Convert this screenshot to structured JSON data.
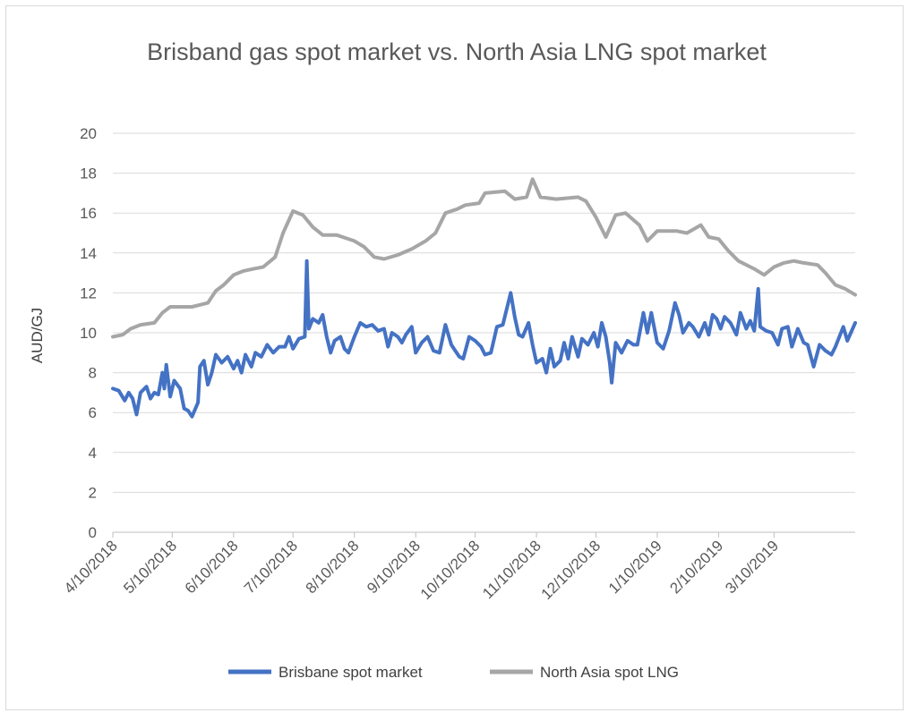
{
  "chart_data": {
    "type": "line",
    "title": "Brisband gas spot market vs. North Asia LNG spot market",
    "ylabel": "AUD/GJ",
    "xlabel": "",
    "ylim": [
      0,
      20
    ],
    "yticks": [
      "0",
      "2",
      "4",
      "6",
      "8",
      "10",
      "12",
      "14",
      "16",
      "18",
      "20"
    ],
    "xticks": [
      "4/10/2018",
      "5/10/2018",
      "6/10/2018",
      "7/10/2018",
      "8/10/2018",
      "9/10/2018",
      "10/10/2018",
      "11/10/2018",
      "12/10/2018",
      "1/10/2019",
      "2/10/2019",
      "3/10/2019"
    ],
    "xrange": [
      "4/10/2018",
      "4/20/2019"
    ],
    "grid": "horizontal",
    "legend_position": "bottom",
    "series": [
      {
        "name": "Brisbane spot market",
        "color": "#4472c4",
        "points": [
          [
            "4/10/2018",
            7.2
          ],
          [
            "4/13/2018",
            7.1
          ],
          [
            "4/16/2018",
            6.6
          ],
          [
            "4/18/2018",
            7.0
          ],
          [
            "4/20/2018",
            6.7
          ],
          [
            "4/22/2018",
            5.9
          ],
          [
            "4/24/2018",
            7.0
          ],
          [
            "4/27/2018",
            7.3
          ],
          [
            "4/29/2018",
            6.7
          ],
          [
            "5/1/2018",
            7.0
          ],
          [
            "5/3/2018",
            6.9
          ],
          [
            "5/5/2018",
            8.0
          ],
          [
            "5/6/2018",
            7.2
          ],
          [
            "5/7/2018",
            8.4
          ],
          [
            "5/9/2018",
            6.8
          ],
          [
            "5/11/2018",
            7.6
          ],
          [
            "5/14/2018",
            7.2
          ],
          [
            "5/16/2018",
            6.2
          ],
          [
            "5/18/2018",
            6.1
          ],
          [
            "5/20/2018",
            5.8
          ],
          [
            "5/23/2018",
            6.5
          ],
          [
            "5/24/2018",
            8.3
          ],
          [
            "5/26/2018",
            8.6
          ],
          [
            "5/28/2018",
            7.4
          ],
          [
            "5/30/2018",
            8.0
          ],
          [
            "6/1/2018",
            8.9
          ],
          [
            "6/4/2018",
            8.5
          ],
          [
            "6/7/2018",
            8.8
          ],
          [
            "6/10/2018",
            8.2
          ],
          [
            "6/12/2018",
            8.6
          ],
          [
            "6/14/2018",
            8.0
          ],
          [
            "6/16/2018",
            8.9
          ],
          [
            "6/19/2018",
            8.3
          ],
          [
            "6/21/2018",
            9.0
          ],
          [
            "6/24/2018",
            8.8
          ],
          [
            "6/27/2018",
            9.4
          ],
          [
            "6/30/2018",
            9.0
          ],
          [
            "7/3/2018",
            9.3
          ],
          [
            "7/6/2018",
            9.3
          ],
          [
            "7/8/2018",
            9.8
          ],
          [
            "7/10/2018",
            9.2
          ],
          [
            "7/13/2018",
            9.7
          ],
          [
            "7/16/2018",
            9.8
          ],
          [
            "7/17/2018",
            13.6
          ],
          [
            "7/18/2018",
            10.2
          ],
          [
            "7/20/2018",
            10.7
          ],
          [
            "7/23/2018",
            10.5
          ],
          [
            "7/25/2018",
            10.9
          ],
          [
            "7/27/2018",
            9.8
          ],
          [
            "7/29/2018",
            9.0
          ],
          [
            "7/31/2018",
            9.6
          ],
          [
            "8/3/2018",
            9.8
          ],
          [
            "8/5/2018",
            9.2
          ],
          [
            "8/7/2018",
            9.0
          ],
          [
            "8/10/2018",
            9.8
          ],
          [
            "8/13/2018",
            10.5
          ],
          [
            "8/16/2018",
            10.3
          ],
          [
            "8/19/2018",
            10.4
          ],
          [
            "8/22/2018",
            10.1
          ],
          [
            "8/25/2018",
            10.2
          ],
          [
            "8/27/2018",
            9.3
          ],
          [
            "8/29/2018",
            10.0
          ],
          [
            "9/1/2018",
            9.8
          ],
          [
            "9/3/2018",
            9.5
          ],
          [
            "9/5/2018",
            9.9
          ],
          [
            "9/8/2018",
            10.3
          ],
          [
            "9/10/2018",
            9.0
          ],
          [
            "9/13/2018",
            9.5
          ],
          [
            "9/16/2018",
            9.8
          ],
          [
            "9/19/2018",
            9.1
          ],
          [
            "9/22/2018",
            9.0
          ],
          [
            "9/25/2018",
            10.4
          ],
          [
            "9/28/2018",
            9.4
          ],
          [
            "9/30/2018",
            9.1
          ],
          [
            "10/2/2018",
            8.8
          ],
          [
            "10/4/2018",
            8.7
          ],
          [
            "10/7/2018",
            9.8
          ],
          [
            "10/10/2018",
            9.6
          ],
          [
            "10/13/2018",
            9.3
          ],
          [
            "10/15/2018",
            8.9
          ],
          [
            "10/18/2018",
            9.0
          ],
          [
            "10/21/2018",
            10.3
          ],
          [
            "10/24/2018",
            10.4
          ],
          [
            "10/26/2018",
            11.2
          ],
          [
            "10/28/2018",
            12.0
          ],
          [
            "10/30/2018",
            10.8
          ],
          [
            "11/1/2018",
            9.9
          ],
          [
            "11/3/2018",
            9.8
          ],
          [
            "11/6/2018",
            10.5
          ],
          [
            "11/8/2018",
            9.4
          ],
          [
            "11/10/2018",
            8.5
          ],
          [
            "11/13/2018",
            8.7
          ],
          [
            "11/15/2018",
            8.0
          ],
          [
            "11/17/2018",
            9.2
          ],
          [
            "11/19/2018",
            8.3
          ],
          [
            "11/22/2018",
            8.6
          ],
          [
            "11/24/2018",
            9.5
          ],
          [
            "11/26/2018",
            8.7
          ],
          [
            "11/28/2018",
            9.8
          ],
          [
            "12/1/2018",
            8.8
          ],
          [
            "12/3/2018",
            9.7
          ],
          [
            "12/6/2018",
            9.4
          ],
          [
            "12/9/2018",
            10.0
          ],
          [
            "12/11/2018",
            9.3
          ],
          [
            "12/13/2018",
            10.5
          ],
          [
            "12/15/2018",
            9.8
          ],
          [
            "12/17/2018",
            8.5
          ],
          [
            "12/18/2018",
            7.5
          ],
          [
            "12/20/2018",
            9.5
          ],
          [
            "12/23/2018",
            9.0
          ],
          [
            "12/26/2018",
            9.6
          ],
          [
            "12/29/2018",
            9.4
          ],
          [
            "12/31/2018",
            9.4
          ],
          [
            "1/3/2019",
            11.0
          ],
          [
            "1/5/2019",
            10.0
          ],
          [
            "1/7/2019",
            11.0
          ],
          [
            "1/10/2019",
            9.5
          ],
          [
            "1/13/2019",
            9.2
          ],
          [
            "1/16/2019",
            10.1
          ],
          [
            "1/19/2019",
            11.5
          ],
          [
            "1/21/2019",
            10.9
          ],
          [
            "1/23/2019",
            10.0
          ],
          [
            "1/26/2019",
            10.5
          ],
          [
            "1/28/2019",
            10.3
          ],
          [
            "1/31/2019",
            9.8
          ],
          [
            "2/3/2019",
            10.5
          ],
          [
            "2/5/2019",
            9.9
          ],
          [
            "2/7/2019",
            10.9
          ],
          [
            "2/9/2019",
            10.7
          ],
          [
            "2/11/2019",
            10.2
          ],
          [
            "2/13/2019",
            10.8
          ],
          [
            "2/16/2019",
            10.5
          ],
          [
            "2/19/2019",
            9.9
          ],
          [
            "2/21/2019",
            11.0
          ],
          [
            "2/24/2019",
            10.2
          ],
          [
            "2/26/2019",
            10.6
          ],
          [
            "2/28/2019",
            10.1
          ],
          [
            "3/2/2019",
            12.2
          ],
          [
            "3/3/2019",
            10.3
          ],
          [
            "3/6/2019",
            10.1
          ],
          [
            "3/9/2019",
            10.0
          ],
          [
            "3/12/2019",
            9.4
          ],
          [
            "3/14/2019",
            10.2
          ],
          [
            "3/17/2019",
            10.3
          ],
          [
            "3/19/2019",
            9.3
          ],
          [
            "3/22/2019",
            10.2
          ],
          [
            "3/25/2019",
            9.5
          ],
          [
            "3/27/2019",
            9.4
          ],
          [
            "3/30/2019",
            8.3
          ],
          [
            "4/2/2019",
            9.4
          ],
          [
            "4/5/2019",
            9.1
          ],
          [
            "4/8/2019",
            8.9
          ],
          [
            "4/10/2019",
            9.3
          ],
          [
            "4/12/2019",
            9.8
          ],
          [
            "4/14/2019",
            10.3
          ],
          [
            "4/16/2019",
            9.6
          ],
          [
            "4/20/2019",
            10.5
          ]
        ]
      },
      {
        "name": "North Asia spot LNG",
        "color": "#a6a6a6",
        "points": [
          [
            "4/10/2018",
            9.8
          ],
          [
            "4/15/2018",
            9.9
          ],
          [
            "4/19/2018",
            10.2
          ],
          [
            "4/24/2018",
            10.4
          ],
          [
            "5/1/2018",
            10.5
          ],
          [
            "5/5/2018",
            11.0
          ],
          [
            "5/9/2018",
            11.3
          ],
          [
            "5/15/2018",
            11.3
          ],
          [
            "5/20/2018",
            11.3
          ],
          [
            "5/24/2018",
            11.4
          ],
          [
            "5/28/2018",
            11.5
          ],
          [
            "6/1/2018",
            12.1
          ],
          [
            "6/5/2018",
            12.4
          ],
          [
            "6/10/2018",
            12.9
          ],
          [
            "6/15/2018",
            13.1
          ],
          [
            "6/20/2018",
            13.2
          ],
          [
            "6/25/2018",
            13.3
          ],
          [
            "7/1/2018",
            13.8
          ],
          [
            "7/5/2018",
            15.0
          ],
          [
            "7/10/2018",
            16.1
          ],
          [
            "7/15/2018",
            15.9
          ],
          [
            "7/20/2018",
            15.3
          ],
          [
            "7/25/2018",
            14.9
          ],
          [
            "8/1/2018",
            14.9
          ],
          [
            "8/10/2018",
            14.6
          ],
          [
            "8/15/2018",
            14.3
          ],
          [
            "8/20/2018",
            13.8
          ],
          [
            "8/25/2018",
            13.7
          ],
          [
            "9/1/2018",
            13.9
          ],
          [
            "9/8/2018",
            14.2
          ],
          [
            "9/15/2018",
            14.6
          ],
          [
            "9/20/2018",
            15.0
          ],
          [
            "9/25/2018",
            16.0
          ],
          [
            "10/1/2018",
            16.2
          ],
          [
            "10/5/2018",
            16.4
          ],
          [
            "10/12/2018",
            16.5
          ],
          [
            "10/15/2018",
            17.0
          ],
          [
            "10/25/2018",
            17.1
          ],
          [
            "10/30/2018",
            16.7
          ],
          [
            "11/5/2018",
            16.8
          ],
          [
            "11/8/2018",
            17.7
          ],
          [
            "11/12/2018",
            16.8
          ],
          [
            "11/20/2018",
            16.7
          ],
          [
            "12/1/2018",
            16.8
          ],
          [
            "12/5/2018",
            16.6
          ],
          [
            "12/10/2018",
            15.8
          ],
          [
            "12/15/2018",
            14.8
          ],
          [
            "12/20/2018",
            15.9
          ],
          [
            "12/25/2018",
            16.0
          ],
          [
            "1/1/2019",
            15.4
          ],
          [
            "1/5/2019",
            14.6
          ],
          [
            "1/10/2019",
            15.1
          ],
          [
            "1/20/2019",
            15.1
          ],
          [
            "1/25/2019",
            15.0
          ],
          [
            "2/1/2019",
            15.4
          ],
          [
            "2/5/2019",
            14.8
          ],
          [
            "2/10/2019",
            14.7
          ],
          [
            "2/15/2019",
            14.1
          ],
          [
            "2/20/2019",
            13.6
          ],
          [
            "2/28/2019",
            13.2
          ],
          [
            "3/5/2019",
            12.9
          ],
          [
            "3/10/2019",
            13.3
          ],
          [
            "3/15/2019",
            13.5
          ],
          [
            "3/20/2019",
            13.6
          ],
          [
            "3/25/2019",
            13.5
          ],
          [
            "4/1/2019",
            13.4
          ],
          [
            "4/5/2019",
            13.0
          ],
          [
            "4/10/2019",
            12.4
          ],
          [
            "4/15/2019",
            12.2
          ],
          [
            "4/20/2019",
            11.9
          ]
        ]
      }
    ]
  }
}
